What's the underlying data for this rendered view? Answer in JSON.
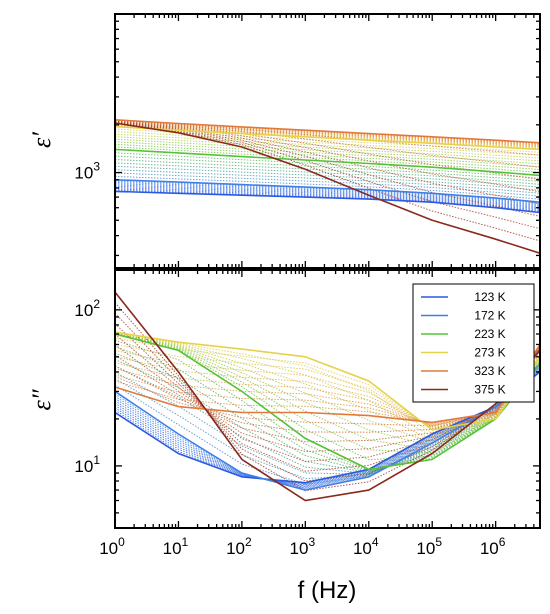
{
  "chart_data": [
    {
      "type": "line",
      "title": "",
      "ylabel": "ε′",
      "xlabel": "",
      "x_scale": "log",
      "y_scale": "log",
      "xlim": [
        1,
        5000000
      ],
      "ylim": [
        250,
        10000
      ],
      "x_ticks": [
        1,
        10,
        100,
        1000,
        10000,
        100000,
        1000000
      ],
      "y_ticks": [
        {
          "base": "10",
          "exp": "3",
          "value": 1000
        }
      ],
      "series": [
        {
          "name": "123 K",
          "color": "#2a5ae0",
          "x": [
            1,
            10,
            100,
            1000,
            10000,
            100000,
            1000000,
            5000000
          ],
          "values": [
            760,
            740,
            720,
            700,
            680,
            650,
            600,
            560
          ]
        },
        {
          "name": "172 K",
          "color": "#3f7fe6",
          "x": [
            1,
            10,
            100,
            1000,
            10000,
            100000,
            1000000,
            5000000
          ],
          "values": [
            900,
            870,
            840,
            810,
            780,
            740,
            690,
            650
          ]
        },
        {
          "name": "223 K",
          "color": "#55c23a",
          "x": [
            1,
            10,
            100,
            1000,
            10000,
            100000,
            1000000,
            5000000
          ],
          "values": [
            1400,
            1330,
            1260,
            1200,
            1140,
            1080,
            1010,
            960
          ]
        },
        {
          "name": "273 K",
          "color": "#e6d24a",
          "x": [
            1,
            10,
            100,
            1000,
            10000,
            100000,
            1000000,
            5000000
          ],
          "values": [
            1950,
            1850,
            1760,
            1680,
            1600,
            1530,
            1450,
            1400
          ]
        },
        {
          "name": "323 K",
          "color": "#e07a3a",
          "x": [
            1,
            10,
            100,
            1000,
            10000,
            100000,
            1000000,
            5000000
          ],
          "values": [
            2150,
            2040,
            1940,
            1850,
            1760,
            1680,
            1600,
            1540
          ]
        },
        {
          "name": "375 K",
          "color": "#8a2a1c",
          "x": [
            1,
            10,
            100,
            1000,
            10000,
            100000,
            1000000,
            5000000
          ],
          "values": [
            2050,
            1780,
            1450,
            1050,
            720,
            500,
            380,
            310
          ]
        }
      ]
    },
    {
      "type": "line",
      "title": "",
      "ylabel": "ε″",
      "xlabel": "f (Hz)",
      "x_scale": "log",
      "y_scale": "log",
      "xlim": [
        1,
        5000000
      ],
      "ylim": [
        4,
        180
      ],
      "x_ticks": [
        {
          "base": "10",
          "exp": "0",
          "value": 1
        },
        {
          "base": "10",
          "exp": "1",
          "value": 10
        },
        {
          "base": "10",
          "exp": "2",
          "value": 100
        },
        {
          "base": "10",
          "exp": "3",
          "value": 1000
        },
        {
          "base": "10",
          "exp": "4",
          "value": 10000
        },
        {
          "base": "10",
          "exp": "5",
          "value": 100000
        },
        {
          "base": "10",
          "exp": "6",
          "value": 1000000
        }
      ],
      "y_ticks": [
        {
          "base": "10",
          "exp": "1",
          "value": 10
        },
        {
          "base": "10",
          "exp": "2",
          "value": 100
        }
      ],
      "legend": "top-right",
      "series": [
        {
          "name": "123 K",
          "color": "#2a5ae0",
          "x": [
            1,
            10,
            100,
            1000,
            10000,
            100000,
            1000000,
            5000000
          ],
          "values": [
            22,
            12,
            8.5,
            7.8,
            9.5,
            16,
            24,
            40
          ]
        },
        {
          "name": "172 K",
          "color": "#3f7fe6",
          "x": [
            1,
            10,
            100,
            1000,
            10000,
            100000,
            1000000,
            5000000
          ],
          "values": [
            30,
            16,
            9,
            7,
            8.5,
            14,
            24,
            45
          ]
        },
        {
          "name": "223 K",
          "color": "#55c23a",
          "x": [
            1,
            10,
            100,
            1000,
            10000,
            100000,
            1000000,
            5000000
          ],
          "values": [
            70,
            55,
            30,
            15,
            9.5,
            11,
            20,
            45
          ]
        },
        {
          "name": "273 K",
          "color": "#e6d24a",
          "x": [
            1,
            10,
            100,
            1000,
            10000,
            100000,
            1000000,
            5000000
          ],
          "values": [
            72,
            62,
            56,
            50,
            35,
            17,
            20,
            50
          ]
        },
        {
          "name": "323 K",
          "color": "#e07a3a",
          "x": [
            1,
            10,
            100,
            1000,
            10000,
            100000,
            1000000,
            5000000
          ],
          "values": [
            32,
            24,
            22,
            22,
            21,
            19,
            22,
            60
          ]
        },
        {
          "name": "375 K",
          "color": "#8a2a1c",
          "x": [
            1,
            10,
            100,
            1000,
            10000,
            100000,
            1000000,
            5000000
          ],
          "values": [
            130,
            40,
            11,
            6,
            7,
            12,
            25,
            55
          ]
        }
      ]
    }
  ]
}
